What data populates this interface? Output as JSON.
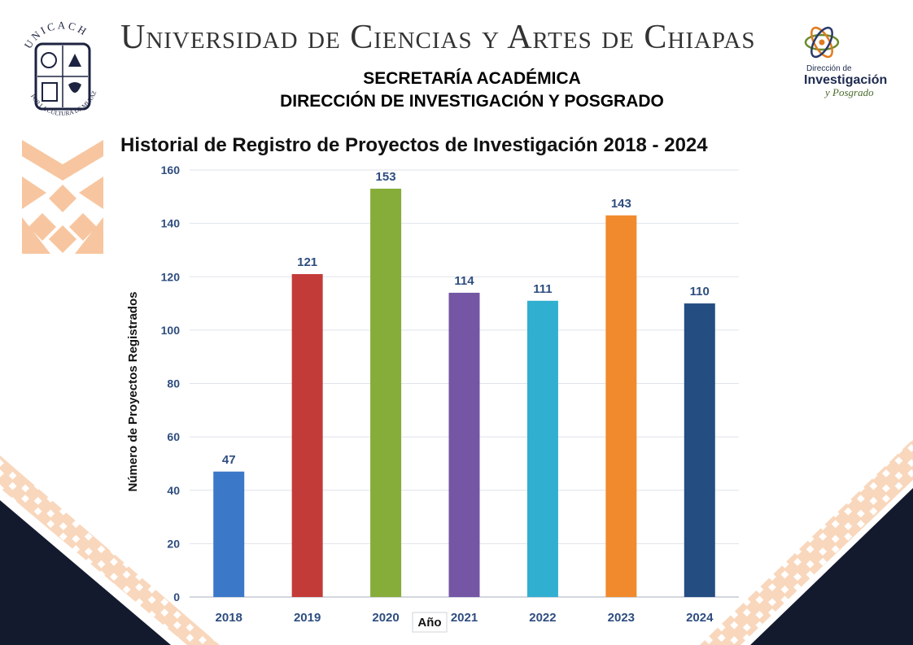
{
  "header": {
    "university": "Universidad de Ciencias y Artes de Chiapas",
    "secretaria": "SECRETARÍA ACADÉMICA",
    "direccion": "DIRECCIÓN DE INVESTIGACIÓN Y POSGRADO"
  },
  "logo_left": {
    "arc_text": "UNICACH",
    "motto": "POR LA CULTURA DE MI RAZA"
  },
  "logo_right": {
    "line1": "Dirección de",
    "line2": "Investigación",
    "line3": "y Posgrado"
  },
  "colors": {
    "brand_orange": "#f7c6a0",
    "dark_navy": "#141a2e",
    "grid": "#dfe3ea",
    "label_blue": "#2e4d7f"
  },
  "chart_data": {
    "type": "bar",
    "title": "Historial de Registro de Proyectos de Investigación 2018 - 2024",
    "xlabel": "Año",
    "ylabel": "Número de Proyectos Registrados",
    "categories": [
      "2018",
      "2019",
      "2020",
      "2021",
      "2022",
      "2023",
      "2024"
    ],
    "values": [
      47,
      121,
      153,
      114,
      111,
      143,
      110
    ],
    "bar_colors": [
      "#3b78c8",
      "#c33b38",
      "#86ad3a",
      "#7456a4",
      "#31afd1",
      "#f08a2c",
      "#244d82"
    ],
    "ylim": [
      0,
      160
    ],
    "yticks": [
      0,
      20,
      40,
      60,
      80,
      100,
      120,
      140,
      160
    ],
    "grid": true,
    "legend": "none"
  }
}
